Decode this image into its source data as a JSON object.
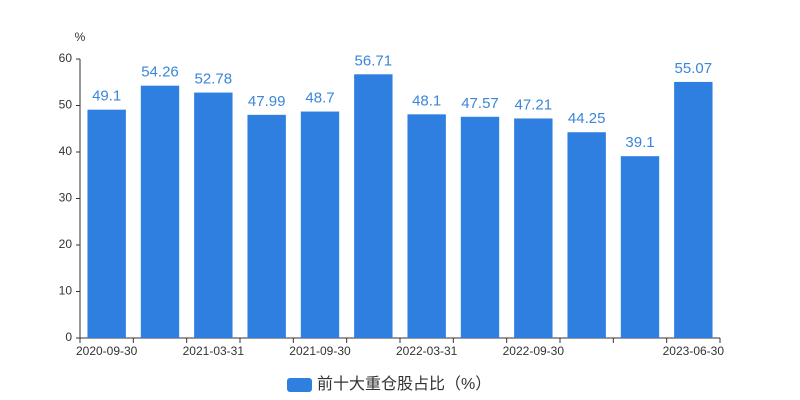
{
  "chart_data": {
    "type": "bar",
    "y_label": "%",
    "categories": [
      "2020-09-30",
      null,
      "2021-03-31",
      null,
      "2021-09-30",
      null,
      "2022-03-31",
      null,
      "2022-09-30",
      null,
      null,
      "2023-06-30"
    ],
    "series": [
      {
        "name": "前十大重仓股占比（%）",
        "color": "#2f7fe0",
        "values": [
          49.1,
          54.26,
          52.78,
          47.99,
          48.7,
          56.71,
          48.1,
          47.57,
          47.21,
          44.25,
          39.1,
          55.07
        ]
      }
    ],
    "ylim": [
      0,
      60
    ],
    "yticks": [
      0,
      10,
      20,
      30,
      40,
      50,
      60
    ],
    "grid": false,
    "legend": "bottom"
  }
}
